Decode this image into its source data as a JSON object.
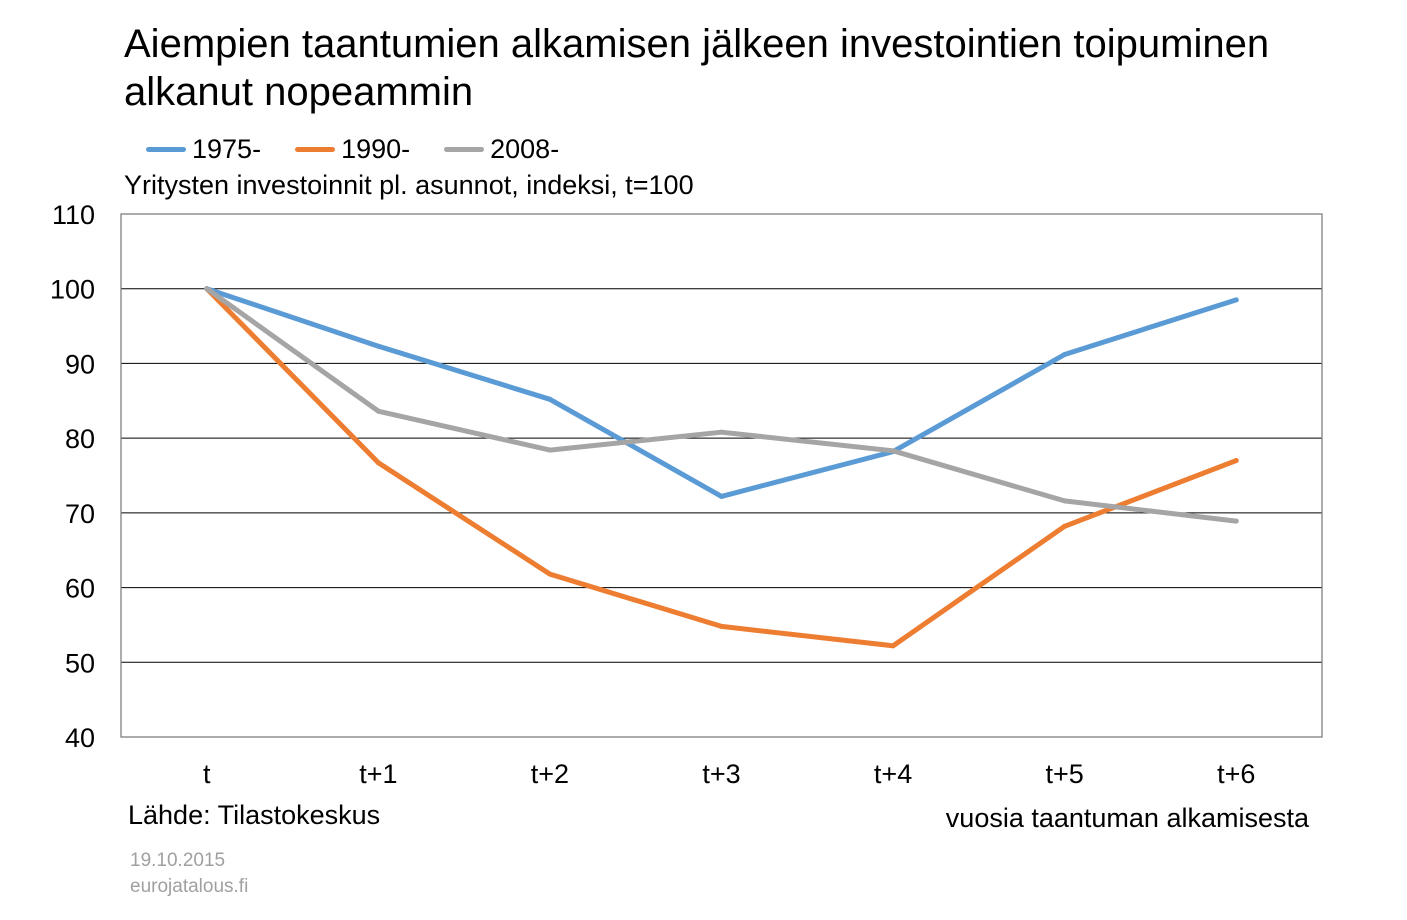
{
  "chart_data": {
    "type": "line",
    "title": "Aiempien taantumien alkamisen jälkeen investointien toipuminen alkanut nopeammin",
    "subtitle": "Yritysten investoinnit pl. asunnot, indeksi, t=100",
    "xlabel": "vuosia taantuman alkamisesta",
    "ylabel": "",
    "categories": [
      "t",
      "t+1",
      "t+2",
      "t+3",
      "t+4",
      "t+5",
      "t+6"
    ],
    "ylim": [
      40,
      110
    ],
    "yticks": [
      40,
      50,
      60,
      70,
      80,
      90,
      100,
      110
    ],
    "grid": true,
    "legend_position": "top-left",
    "series": [
      {
        "name": "1975-",
        "color": "#5b9bd5",
        "values": [
          100,
          92.3,
          85.2,
          72.2,
          78.2,
          91.2,
          98.5
        ]
      },
      {
        "name": "1990-",
        "color": "#ed7d31",
        "values": [
          100,
          76.7,
          61.8,
          54.8,
          52.2,
          68.2,
          77.0
        ]
      },
      {
        "name": "2008-",
        "color": "#a5a5a5",
        "values": [
          100,
          83.6,
          78.4,
          80.8,
          78.3,
          71.6,
          68.9
        ]
      }
    ]
  },
  "footer": {
    "source": "Lähde: Tilastokeskus",
    "date": "19.10.2015",
    "site": "eurojatalous.fi"
  }
}
